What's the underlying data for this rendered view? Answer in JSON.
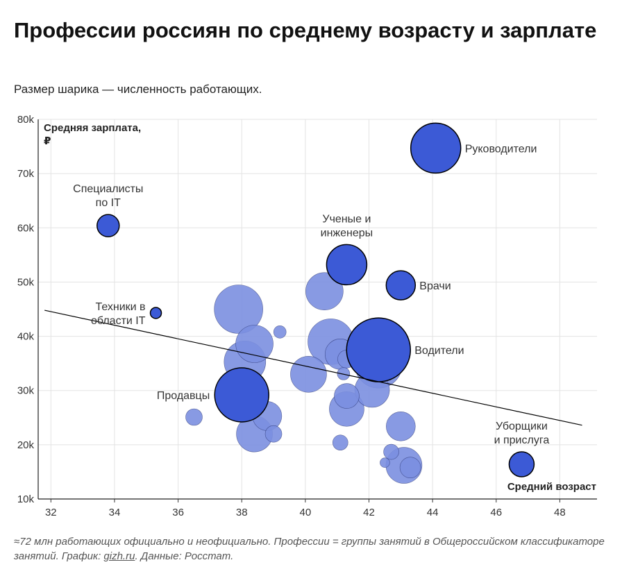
{
  "title": "Профессии россиян по среднему возрасту и зарплате",
  "subtitle": "Размер шарика — численность работающих.",
  "footnote": {
    "text": "≈72 млн работающих официально и неофициально. Профессии = группы занятий в Общероссийском классификаторе занятий. График: ",
    "link": "gizh.ru",
    "tail": ". Данные: Росстат."
  },
  "chart_data": {
    "type": "scatter",
    "ylabel": "Средняя зарплата, ₽",
    "xlabel": "Средний возраст",
    "xlim": [
      31.5,
      48.9
    ],
    "ylim": [
      10000,
      80000
    ],
    "x_ticks": [
      32,
      34,
      36,
      38,
      40,
      42,
      44,
      46,
      48
    ],
    "y_ticks": [
      10000,
      20000,
      30000,
      40000,
      50000,
      60000,
      70000,
      80000
    ],
    "y_tick_labels": [
      "10k",
      "20k",
      "30k",
      "40k",
      "50k",
      "60k",
      "70k",
      "80k"
    ],
    "grid": true,
    "colors": {
      "highlight": "#3c5ad6",
      "regular": "#7b8fe0",
      "stroke": "#1a2460",
      "trend": "#000000"
    },
    "trend_line": [
      [
        31.8,
        44800
      ],
      [
        48.7,
        23600
      ]
    ],
    "points": [
      {
        "x": 44.1,
        "y": 74700,
        "r": 36,
        "highlight": true,
        "label": "Руководители"
      },
      {
        "x": 33.8,
        "y": 60400,
        "r": 16,
        "highlight": true,
        "label": "Специалисты по IT"
      },
      {
        "x": 41.3,
        "y": 53200,
        "r": 29,
        "highlight": true,
        "label": "Ученые и инженеры"
      },
      {
        "x": 43.0,
        "y": 49400,
        "r": 21,
        "highlight": true,
        "label": "Врачи"
      },
      {
        "x": 35.3,
        "y": 44300,
        "r": 8,
        "highlight": true,
        "label": "Техники в области IT"
      },
      {
        "x": 42.3,
        "y": 37500,
        "r": 46,
        "highlight": true,
        "label": "Водители"
      },
      {
        "x": 38.0,
        "y": 29200,
        "r": 39,
        "highlight": true,
        "label": "Продавцы"
      },
      {
        "x": 46.8,
        "y": 16400,
        "r": 18,
        "highlight": true,
        "label": "Уборщики и прислуга"
      },
      {
        "x": 37.9,
        "y": 45000,
        "r": 35,
        "highlight": false
      },
      {
        "x": 38.4,
        "y": 38600,
        "r": 27,
        "highlight": false
      },
      {
        "x": 38.1,
        "y": 35300,
        "r": 30,
        "highlight": false
      },
      {
        "x": 39.2,
        "y": 40800,
        "r": 9,
        "highlight": false
      },
      {
        "x": 40.6,
        "y": 48300,
        "r": 27,
        "highlight": false
      },
      {
        "x": 40.8,
        "y": 39000,
        "r": 33,
        "highlight": false
      },
      {
        "x": 41.1,
        "y": 36700,
        "r": 22,
        "highlight": false
      },
      {
        "x": 40.1,
        "y": 33000,
        "r": 26,
        "highlight": false
      },
      {
        "x": 41.3,
        "y": 35800,
        "r": 13,
        "highlight": false
      },
      {
        "x": 41.8,
        "y": 37200,
        "r": 15,
        "highlight": false
      },
      {
        "x": 41.2,
        "y": 33100,
        "r": 9,
        "highlight": false
      },
      {
        "x": 42.3,
        "y": 34800,
        "r": 34,
        "highlight": false
      },
      {
        "x": 41.3,
        "y": 29000,
        "r": 18,
        "highlight": false
      },
      {
        "x": 41.3,
        "y": 26600,
        "r": 25,
        "highlight": false
      },
      {
        "x": 42.1,
        "y": 30100,
        "r": 25,
        "highlight": false
      },
      {
        "x": 41.1,
        "y": 20400,
        "r": 11,
        "highlight": false
      },
      {
        "x": 38.8,
        "y": 25300,
        "r": 21,
        "highlight": false
      },
      {
        "x": 38.4,
        "y": 22000,
        "r": 26,
        "highlight": false
      },
      {
        "x": 39.0,
        "y": 22000,
        "r": 12,
        "highlight": false
      },
      {
        "x": 36.5,
        "y": 25100,
        "r": 12,
        "highlight": false
      },
      {
        "x": 43.0,
        "y": 23400,
        "r": 21,
        "highlight": false
      },
      {
        "x": 42.7,
        "y": 18700,
        "r": 11,
        "highlight": false
      },
      {
        "x": 42.5,
        "y": 16700,
        "r": 7,
        "highlight": false
      },
      {
        "x": 43.1,
        "y": 16200,
        "r": 26,
        "highlight": false
      },
      {
        "x": 43.3,
        "y": 15800,
        "r": 15,
        "highlight": false
      }
    ]
  }
}
